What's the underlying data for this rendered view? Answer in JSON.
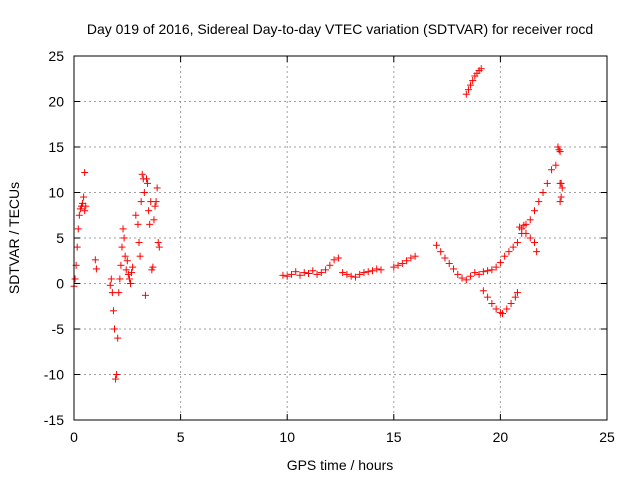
{
  "chart_data": {
    "type": "scatter",
    "title": "Day 019 of 2016, Sidereal Day-to-day VTEC variation (SDTVAR) for receiver rocd",
    "xlabel": "GPS time / hours",
    "ylabel": "SDTVAR / TECUs",
    "xlim": [
      0,
      25
    ],
    "ylim": [
      -15,
      25
    ],
    "xticks": [
      "0",
      "5",
      "10",
      "15",
      "20",
      "25"
    ],
    "yticks": [
      "-15",
      "-10",
      "-5",
      "0",
      "5",
      "10",
      "15",
      "20",
      "25"
    ],
    "grid": true,
    "marker": "plus",
    "color": "#ff0000",
    "series": [
      {
        "x": [
          0.0,
          0.05,
          0.1,
          0.15,
          0.2,
          0.25,
          0.3,
          0.35,
          0.4,
          0.45,
          0.5,
          0.5,
          0.55,
          1.0,
          1.05,
          1.7,
          1.75,
          1.8,
          1.85,
          1.9,
          1.95,
          2.0,
          2.05,
          2.1,
          2.15,
          2.2,
          2.25,
          2.3,
          2.35,
          2.4,
          2.45,
          2.5,
          2.55,
          2.6,
          2.65,
          2.7,
          2.75,
          2.9,
          3.0,
          3.05,
          3.1,
          3.15,
          3.2,
          3.25,
          3.3,
          3.35,
          3.4,
          3.45,
          3.5,
          3.55,
          3.6,
          3.65,
          3.7,
          3.75,
          3.8,
          3.85,
          3.9,
          3.95,
          4.0
        ],
        "y": [
          -0.3,
          0.5,
          2.0,
          4.0,
          6.0,
          7.5,
          8.2,
          8.5,
          8.8,
          9.5,
          8.0,
          12.2,
          8.5,
          2.6,
          1.6,
          -0.2,
          0.5,
          -1.0,
          -3.0,
          -5.0,
          -10.5,
          -10.0,
          -6.0,
          -1.0,
          0.5,
          2.0,
          4.0,
          6.0,
          5.0,
          3.0,
          1.5,
          2.5,
          1.0,
          0.5,
          0.0,
          1.2,
          1.8,
          7.5,
          6.5,
          4.5,
          3.0,
          9.0,
          12.0,
          11.5,
          10.0,
          -1.3,
          11.5,
          11.0,
          8.0,
          6.5,
          9.0,
          1.5,
          1.8,
          7.0,
          8.5,
          9.0,
          10.5,
          4.5,
          4.0
        ]
      },
      {
        "x": [
          9.8,
          10.0,
          10.2,
          10.4,
          10.6,
          10.8,
          11.0,
          11.2,
          11.4,
          11.6,
          11.8,
          12.0,
          12.2,
          12.4,
          12.6,
          12.8,
          13.0,
          13.2,
          13.4,
          13.6,
          13.8,
          14.0,
          14.2,
          14.4
        ],
        "y": [
          0.9,
          0.8,
          1.0,
          1.3,
          0.9,
          1.2,
          1.1,
          1.4,
          1.0,
          1.2,
          1.5,
          2.0,
          2.6,
          2.8,
          1.2,
          1.0,
          0.8,
          0.7,
          1.0,
          1.2,
          1.3,
          1.4,
          1.6,
          1.5
        ]
      },
      {
        "x": [
          15.0,
          15.2,
          15.4,
          15.6,
          15.8,
          16.0
        ],
        "y": [
          1.8,
          2.0,
          2.2,
          2.5,
          2.8,
          3.0
        ]
      },
      {
        "x": [
          17.0,
          17.2,
          17.4,
          17.6,
          17.8,
          18.0,
          18.2,
          18.4,
          18.6,
          18.8,
          19.0,
          19.2,
          19.4,
          19.6,
          19.8,
          20.0,
          20.2,
          20.4,
          20.6,
          20.8,
          21.0,
          21.2,
          21.4,
          21.6,
          21.8,
          22.0,
          22.2,
          22.4,
          22.6,
          22.8
        ],
        "y": [
          4.2,
          3.5,
          2.8,
          2.2,
          1.6,
          1.0,
          0.6,
          0.4,
          0.8,
          1.2,
          1.0,
          1.3,
          1.4,
          1.5,
          1.8,
          2.3,
          3.0,
          3.5,
          4.0,
          4.5,
          5.5,
          6.5,
          7.0,
          8.0,
          9.0,
          10.0,
          11.0,
          12.5,
          13.0,
          11.0
        ]
      },
      {
        "x": [
          18.4,
          18.5,
          18.6,
          18.7,
          18.8,
          18.9,
          19.0,
          19.1
        ],
        "y": [
          20.8,
          21.3,
          21.8,
          22.3,
          22.8,
          23.1,
          23.4,
          23.6
        ]
      },
      {
        "x": [
          19.2,
          19.4,
          19.6,
          19.8,
          20.0,
          20.1,
          20.3,
          20.5,
          20.7,
          20.8
        ],
        "y": [
          -0.8,
          -1.5,
          -2.2,
          -2.8,
          -3.2,
          -3.3,
          -2.8,
          -2.2,
          -1.5,
          -1.0
        ]
      },
      {
        "x": [
          20.9,
          21.0,
          21.1,
          21.2,
          21.4,
          21.6,
          21.7
        ],
        "y": [
          6.2,
          6.0,
          6.4,
          5.5,
          5.0,
          4.5,
          3.5
        ]
      },
      {
        "x": [
          22.7,
          22.75,
          22.8,
          22.85,
          22.9,
          22.8,
          22.85
        ],
        "y": [
          15.0,
          14.7,
          14.5,
          11.0,
          10.5,
          9.0,
          9.5
        ]
      }
    ]
  }
}
